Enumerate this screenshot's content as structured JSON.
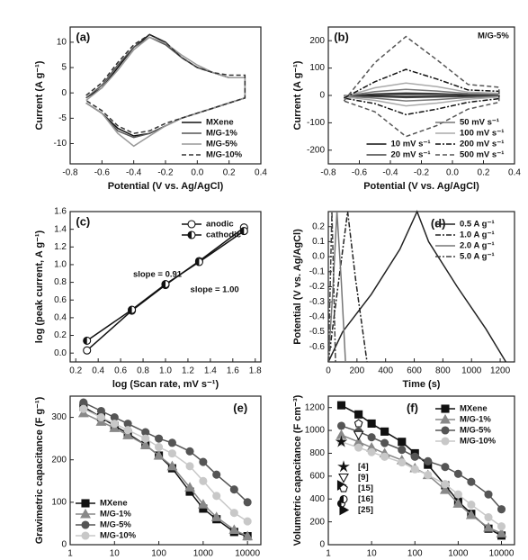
{
  "chart_data": [
    {
      "type": "line",
      "label": "(a)",
      "x_label": "Potential (V vs. Ag/AgCl)",
      "y_label": "Current (A g⁻¹)",
      "xlim": [
        -0.8,
        0.4
      ],
      "ylim": [
        -14,
        13
      ],
      "xticks": [
        -0.8,
        -0.6,
        -0.4,
        -0.2,
        {
          "value": 0,
          "label": "0.0"
        },
        0.2,
        0.4
      ],
      "yticks": [
        -10,
        -5,
        0,
        5,
        10
      ],
      "legend": "lower right",
      "x": [
        -0.7,
        -0.6,
        -0.5,
        -0.4,
        -0.3,
        -0.2,
        -0.1,
        0,
        0.1,
        0.2,
        0.3,
        0.3,
        0.2,
        0.1,
        0,
        -0.1,
        -0.2,
        -0.3,
        -0.4,
        -0.5,
        -0.6,
        -0.7
      ],
      "series": [
        {
          "name": "MXene",
          "color": "#111111",
          "linestyle": "solid",
          "values": [
            -1,
            1,
            5,
            9,
            11.5,
            10,
            7,
            5,
            4,
            3,
            3,
            -1,
            -2,
            -3,
            -4,
            -5,
            -6.5,
            -8,
            -8.5,
            -7,
            -4,
            -2
          ]
        },
        {
          "name": "M/G-1%",
          "color": "#555555",
          "linestyle": "solid",
          "values": [
            -1,
            1.5,
            5.5,
            9,
            11,
            9.5,
            7,
            5,
            4,
            3,
            3,
            -1,
            -2,
            -3,
            -4,
            -5,
            -6.5,
            -8,
            -8.8,
            -7.5,
            -4,
            -2
          ]
        },
        {
          "name": "M/G-5%",
          "color": "#999999",
          "linestyle": "solid",
          "values": [
            -1.5,
            1,
            4.5,
            8.5,
            11,
            9.8,
            7.5,
            5.5,
            4,
            3,
            3,
            -1,
            -2,
            -3,
            -4,
            -5,
            -6.5,
            -8.5,
            -10.5,
            -8,
            -4,
            -2
          ]
        },
        {
          "name": "M/G-10%",
          "color": "#333333",
          "linestyle": "dashed",
          "values": [
            -0.5,
            2,
            6,
            9.5,
            11.5,
            10,
            7,
            5,
            4,
            3.5,
            3.5,
            -1,
            -2,
            -3,
            -4,
            -5,
            -6,
            -7.5,
            -8,
            -6.5,
            -3.5,
            -1.5
          ]
        }
      ]
    },
    {
      "type": "line",
      "label": "(b)",
      "x_label": "Potential (V vs. Ag/AgCl)",
      "y_label": "Current (A g⁻¹)",
      "annotations": [
        "M/G-5%"
      ],
      "xlim": [
        -0.8,
        0.4
      ],
      "ylim": [
        -250,
        250
      ],
      "xticks": [
        -0.8,
        -0.6,
        -0.4,
        -0.2,
        {
          "value": 0,
          "label": "0.0"
        },
        0.2,
        0.4
      ],
      "yticks": [
        -200,
        -100,
        0,
        100,
        200
      ],
      "legend": "lower right",
      "x": [
        -0.7,
        -0.5,
        -0.3,
        -0.1,
        0.1,
        0.3,
        0.3,
        0.1,
        -0.1,
        -0.3,
        -0.5,
        -0.7
      ],
      "series": [
        {
          "name": "10 mV s⁻¹",
          "color": "#111111",
          "linestyle": "solid",
          "legend": "lower center",
          "values": [
            -1,
            3,
            5,
            4,
            2,
            1,
            -1,
            -2,
            -3,
            -4,
            -2,
            -1
          ]
        },
        {
          "name": "20 mV s⁻¹",
          "color": "#444444",
          "linestyle": "solid",
          "legend": "lower center",
          "values": [
            -2,
            6,
            9,
            7,
            3,
            2,
            -2,
            -4,
            -6,
            -8,
            -4,
            -2
          ]
        },
        {
          "name": "50 mV s⁻¹",
          "color": "#777777",
          "linestyle": "solid",
          "values": [
            -3,
            14,
            22,
            16,
            7,
            5,
            -4,
            -8,
            -15,
            -20,
            -10,
            -3
          ]
        },
        {
          "name": "100 mV s⁻¹",
          "color": "#aaaaaa",
          "linestyle": "solid",
          "values": [
            -5,
            28,
            45,
            32,
            12,
            8,
            -6,
            -14,
            -28,
            -38,
            -18,
            -5
          ]
        },
        {
          "name": "200 mV s⁻¹",
          "color": "#111111",
          "linestyle": "dashdot",
          "values": [
            -10,
            50,
            95,
            60,
            20,
            15,
            -12,
            -25,
            -50,
            -70,
            -30,
            -10
          ]
        },
        {
          "name": "500 mV s⁻¹",
          "color": "#555555",
          "linestyle": "dashed",
          "values": [
            -20,
            120,
            215,
            130,
            40,
            30,
            -25,
            -50,
            -110,
            -150,
            -60,
            -20
          ]
        }
      ]
    },
    {
      "type": "line",
      "label": "(c)",
      "x_label": "log (Scan rate, mV s⁻¹)",
      "y_label": "log (peak current, A g⁻¹)",
      "annotations": [
        "slope = 0.91",
        "slope = 1.00"
      ],
      "xlim": [
        0.15,
        1.85
      ],
      "ylim": [
        -0.1,
        1.6
      ],
      "xticks": [
        0.2,
        0.4,
        0.6,
        0.8,
        {
          "value": 1,
          "label": "1.0"
        },
        1.2,
        1.4,
        1.6,
        1.8
      ],
      "yticks": [
        {
          "value": 0,
          "label": "0.0"
        },
        0.2,
        0.4,
        0.6,
        0.8,
        {
          "value": 1,
          "label": "1.0"
        },
        1.2,
        1.4,
        1.6
      ],
      "legend": "upper right",
      "x": [
        0.3,
        0.7,
        1.0,
        1.3,
        1.7
      ],
      "series": [
        {
          "name": "anodic",
          "color": "#111111",
          "linestyle": "solid",
          "marker": "circle",
          "markerfill": "#ffffff",
          "values": [
            0.03,
            0.48,
            0.77,
            1.04,
            1.42
          ]
        },
        {
          "name": "cathodic",
          "color": "#111111",
          "linestyle": "solid",
          "marker": "half-circle",
          "markerfill": "#ffffff",
          "values": [
            0.14,
            0.49,
            0.78,
            1.03,
            1.38
          ]
        }
      ]
    },
    {
      "type": "line",
      "label": "(d)",
      "x_label": "Time (s)",
      "y_label": "Potential (V vs. Ag/AgCl)",
      "xlim": [
        0,
        1300
      ],
      "ylim": [
        -0.7,
        0.3
      ],
      "xticks": [
        0,
        200,
        400,
        600,
        800,
        1000,
        1200
      ],
      "yticks": [
        -0.6,
        -0.5,
        -0.4,
        -0.3,
        -0.2,
        -0.1,
        {
          "value": 0,
          "label": "0.0"
        },
        0.1,
        0.2
      ],
      "legend": "upper right",
      "series": [
        {
          "name": "0.5 A g⁻¹",
          "color": "#222222",
          "linestyle": "solid",
          "x": [
            0,
            100,
            300,
            500,
            620,
            700,
            900,
            1100,
            1240
          ],
          "values": [
            -0.7,
            -0.5,
            -0.25,
            0.05,
            0.3,
            0.1,
            -0.2,
            -0.48,
            -0.7
          ]
        },
        {
          "name": "1.0 A g⁻¹",
          "color": "#222222",
          "linestyle": "dashdot",
          "x": [
            0,
            60,
            135,
            190,
            270
          ],
          "values": [
            -0.7,
            -0.25,
            0.3,
            -0.15,
            -0.7
          ]
        },
        {
          "name": "2.0 A g⁻¹",
          "color": "#777777",
          "linestyle": "solid",
          "x": [
            0,
            30,
            60,
            90,
            120
          ],
          "values": [
            -0.7,
            -0.25,
            0.3,
            -0.15,
            -0.7
          ]
        },
        {
          "name": "5.0 A g⁻¹",
          "color": "#444444",
          "linestyle": "dashdot",
          "x": [
            0,
            12,
            25,
            37,
            50
          ],
          "values": [
            -0.7,
            -0.25,
            0.3,
            -0.15,
            -0.7
          ]
        }
      ]
    },
    {
      "type": "line",
      "label": "(e)",
      "y_label": "Gravimetric capacitance (F g⁻¹)",
      "xlim": [
        1,
        20000
      ],
      "xlog": true,
      "ylim": [
        0,
        350
      ],
      "xticks": [
        1,
        10,
        100,
        1000,
        10000
      ],
      "yticks": [
        0,
        100,
        200,
        300
      ],
      "legend": "lower left",
      "x": [
        2,
        5,
        10,
        20,
        50,
        100,
        200,
        500,
        1000,
        2000,
        5000,
        10000
      ],
      "series": [
        {
          "name": "MXene",
          "color": "#111111",
          "linestyle": "solid",
          "marker": "square",
          "values": [
            325,
            300,
            280,
            262,
            235,
            210,
            180,
            125,
            85,
            60,
            30,
            20
          ]
        },
        {
          "name": "M/G-1%",
          "color": "#888888",
          "linestyle": "solid",
          "marker": "triangle",
          "values": [
            310,
            290,
            275,
            258,
            235,
            210,
            185,
            135,
            95,
            65,
            35,
            20
          ]
        },
        {
          "name": "M/G-5%",
          "color": "#555555",
          "linestyle": "solid",
          "marker": "circle",
          "values": [
            335,
            315,
            300,
            285,
            265,
            250,
            240,
            220,
            195,
            165,
            130,
            100
          ]
        },
        {
          "name": "M/G-10%",
          "color": "#c8c8c8",
          "linestyle": "solid",
          "marker": "circle",
          "values": [
            320,
            300,
            285,
            270,
            250,
            230,
            215,
            185,
            150,
            115,
            75,
            55
          ]
        }
      ]
    },
    {
      "type": "line",
      "label": "(f)",
      "y_label": "Volumetric capacitance (F cm⁻³)",
      "xlim": [
        1,
        20000
      ],
      "xlog": true,
      "ylim": [
        0,
        1300
      ],
      "xticks": [
        1,
        10,
        100,
        1000,
        10000
      ],
      "yticks": [
        0,
        200,
        400,
        600,
        800,
        1000,
        1200
      ],
      "legend": "upper right",
      "x": [
        2,
        5,
        10,
        20,
        50,
        100,
        200,
        500,
        1000,
        2000,
        5000,
        10000
      ],
      "series": [
        {
          "name": "MXene",
          "color": "#111111",
          "linestyle": "solid",
          "marker": "square",
          "values": [
            1220,
            1140,
            1060,
            990,
            900,
            800,
            700,
            520,
            380,
            270,
            140,
            80
          ]
        },
        {
          "name": "M/G-1%",
          "color": "#888888",
          "linestyle": "solid",
          "marker": "triangle",
          "values": [
            960,
            900,
            850,
            800,
            740,
            670,
            610,
            480,
            360,
            260,
            150,
            100
          ]
        },
        {
          "name": "M/G-5%",
          "color": "#555555",
          "linestyle": "solid",
          "marker": "circle",
          "values": [
            1040,
            990,
            940,
            890,
            830,
            770,
            730,
            680,
            620,
            550,
            440,
            310
          ]
        },
        {
          "name": "M/G-10%",
          "color": "#c8c8c8",
          "linestyle": "solid",
          "marker": "circle",
          "values": [
            900,
            850,
            810,
            770,
            720,
            660,
            610,
            530,
            440,
            350,
            240,
            160
          ]
        },
        {
          "name": "[4]",
          "color": "#111111",
          "linestyle": "none",
          "marker": "star",
          "legend": "center left",
          "x": [
            2
          ],
          "values": [
            900
          ]
        },
        {
          "name": "[9]",
          "color": "#111111",
          "linestyle": "none",
          "marker": "triangle-down",
          "markerfill": "#ffffff",
          "legend": "center left",
          "x": [
            5
          ],
          "values": [
            960
          ]
        },
        {
          "name": "[15]",
          "color": "#111111",
          "linestyle": "none",
          "marker": "pentagon",
          "markerfill": "#ffffff",
          "legend": "center left",
          "x": [
            5
          ],
          "values": [
            1060
          ]
        },
        {
          "name": "[16]",
          "color": "#111111",
          "linestyle": "none",
          "marker": "half-circle",
          "markerfill": "#ffffff",
          "legend": "center left",
          "x": [
            2
          ],
          "values": [
            360
          ]
        },
        {
          "name": "[25]",
          "color": "#111111",
          "linestyle": "none",
          "marker": "triangle-right",
          "legend": "center left",
          "x": [
            2
          ],
          "values": [
            520
          ]
        }
      ]
    }
  ]
}
